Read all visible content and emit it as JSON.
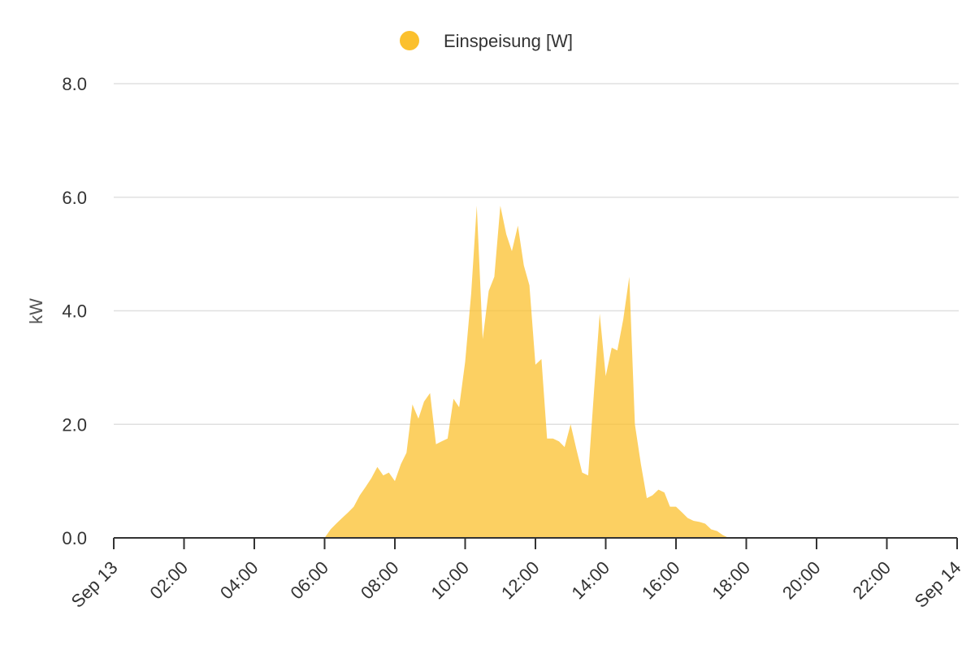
{
  "chart_data": {
    "type": "area",
    "title": "",
    "xlabel": "",
    "ylabel": "kW",
    "ylim": [
      0,
      8
    ],
    "y_ticks": [
      "0.0",
      "2.0",
      "4.0",
      "6.0",
      "8.0"
    ],
    "x_ticks": [
      "Sep 13",
      "02:00",
      "04:00",
      "06:00",
      "08:00",
      "10:00",
      "12:00",
      "14:00",
      "16:00",
      "18:00",
      "20:00",
      "22:00",
      "Sep 14"
    ],
    "xlim_hours": [
      0,
      24
    ],
    "grid": true,
    "legend_position": "top-center",
    "series": [
      {
        "name": "Einspeisung [W]",
        "color": "#FBC02D",
        "x": [
          6.0,
          6.17,
          6.33,
          6.5,
          6.67,
          6.83,
          7.0,
          7.17,
          7.33,
          7.5,
          7.67,
          7.83,
          8.0,
          8.17,
          8.33,
          8.5,
          8.67,
          8.83,
          9.0,
          9.17,
          9.33,
          9.5,
          9.67,
          9.83,
          10.0,
          10.17,
          10.33,
          10.5,
          10.67,
          10.83,
          11.0,
          11.17,
          11.33,
          11.5,
          11.67,
          11.83,
          12.0,
          12.17,
          12.33,
          12.5,
          12.67,
          12.83,
          13.0,
          13.17,
          13.33,
          13.5,
          13.67,
          13.83,
          14.0,
          14.17,
          14.33,
          14.5,
          14.67,
          14.83,
          15.0,
          15.17,
          15.33,
          15.5,
          15.67,
          15.83,
          16.0,
          16.17,
          16.33,
          16.5,
          16.67,
          16.83,
          17.0,
          17.17,
          17.33,
          17.5,
          17.67
        ],
        "values": [
          0.0,
          0.15,
          0.25,
          0.35,
          0.45,
          0.55,
          0.75,
          0.9,
          1.05,
          1.25,
          1.1,
          1.15,
          1.0,
          1.3,
          1.5,
          2.35,
          2.1,
          2.4,
          2.55,
          1.65,
          1.7,
          1.75,
          2.45,
          2.3,
          3.1,
          4.3,
          5.85,
          3.5,
          4.35,
          4.6,
          5.85,
          5.35,
          5.05,
          5.5,
          4.8,
          4.45,
          3.05,
          3.15,
          1.75,
          1.75,
          1.7,
          1.6,
          2.0,
          1.55,
          1.15,
          1.1,
          2.6,
          3.95,
          2.85,
          3.35,
          3.3,
          3.85,
          4.6,
          2.0,
          1.3,
          0.7,
          0.75,
          0.85,
          0.8,
          0.55,
          0.55,
          0.45,
          0.35,
          0.3,
          0.28,
          0.25,
          0.15,
          0.12,
          0.05,
          0.0,
          0.0
        ]
      }
    ]
  }
}
